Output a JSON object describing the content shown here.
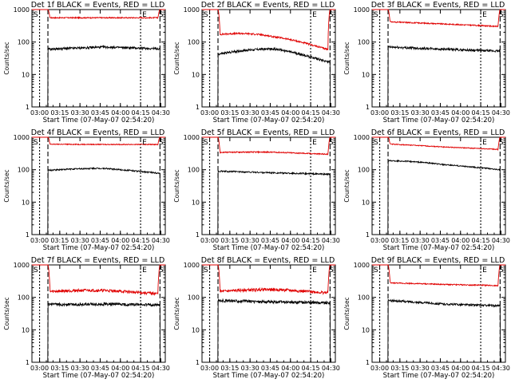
{
  "panels": [
    {
      "title": "Det 1f  BLACK = Events, RED = LLD",
      "xlabel": "Start Time (07-May-07 02:54:20)",
      "ylabel": "Counts/sec",
      "red": {
        "edgeL": 1000,
        "edgeR": 1000,
        "start": 560,
        "mid": 560,
        "end": 560,
        "noise": 0.04,
        "bump": 0
      },
      "black": {
        "edgeL": 3,
        "edgeR": 3,
        "start": 60,
        "mid": 70,
        "end": 62,
        "noise": 0.08,
        "bump": 0
      }
    },
    {
      "title": "Det 2f  BLACK = Events, RED = LLD",
      "xlabel": "Start Time (07-May-07 02:54:20)",
      "ylabel": "Counts/sec",
      "red": {
        "edgeL": 1000,
        "edgeR": 1000,
        "start": 170,
        "mid": 110,
        "end": 80,
        "noise": 0.06,
        "bump": 0.35
      },
      "black": {
        "edgeL": 3,
        "edgeR": 3,
        "start": 42,
        "mid": 50,
        "end": 30,
        "noise": 0.08,
        "bump": 0.25
      }
    },
    {
      "title": "Det 3f  BLACK = Events, RED = LLD",
      "xlabel": "Start Time (07-May-07 02:54:20)",
      "ylabel": "Counts/sec",
      "red": {
        "edgeL": 1000,
        "edgeR": 1000,
        "start": 420,
        "mid": 360,
        "end": 300,
        "noise": 0.04,
        "bump": 0
      },
      "black": {
        "edgeL": 3,
        "edgeR": 3,
        "start": 70,
        "mid": 60,
        "end": 52,
        "noise": 0.08,
        "bump": 0
      }
    },
    {
      "title": "Det 4f  BLACK = Events, RED = LLD",
      "xlabel": "Start Time (07-May-07 02:54:20)",
      "ylabel": "Counts/sec",
      "red": {
        "edgeL": 1000,
        "edgeR": 1000,
        "start": 610,
        "mid": 600,
        "end": 600,
        "noise": 0.03,
        "bump": 0
      },
      "black": {
        "edgeL": 3,
        "edgeR": 3,
        "start": 95,
        "mid": 100,
        "end": 85,
        "noise": 0.05,
        "bump": 0.1
      }
    },
    {
      "title": "Det 5f  BLACK = Events, RED = LLD",
      "xlabel": "Start Time (07-May-07 02:54:20)",
      "ylabel": "Counts/sec",
      "red": {
        "edgeL": 1000,
        "edgeR": 1000,
        "start": 340,
        "mid": 330,
        "end": 310,
        "noise": 0.04,
        "bump": 0.05
      },
      "black": {
        "edgeL": 3,
        "edgeR": 3,
        "start": 90,
        "mid": 80,
        "end": 72,
        "noise": 0.05,
        "bump": 0
      }
    },
    {
      "title": "Det 6f  BLACK = Events, RED = LLD",
      "xlabel": "Start Time (07-May-07 02:54:20)",
      "ylabel": "Counts/sec",
      "red": {
        "edgeL": 1000,
        "edgeR": 1000,
        "start": 620,
        "mid": 500,
        "end": 420,
        "noise": 0.03,
        "bump": 0
      },
      "black": {
        "edgeL": 3,
        "edgeR": 3,
        "start": 190,
        "mid": 130,
        "end": 110,
        "noise": 0.04,
        "bump": 0.1
      }
    },
    {
      "title": "Det 7f  BLACK = Events, RED = LLD",
      "xlabel": "Start Time (07-May-07 02:54:20)",
      "ylabel": "Counts/sec",
      "red": {
        "edgeL": 1000,
        "edgeR": 1000,
        "start": 150,
        "mid": 150,
        "end": 140,
        "noise": 0.1,
        "bump": 0.1
      },
      "black": {
        "edgeL": 3,
        "edgeR": 3,
        "start": 60,
        "mid": 62,
        "end": 58,
        "noise": 0.1,
        "bump": 0
      }
    },
    {
      "title": "Det 8f  BLACK = Events, RED = LLD",
      "xlabel": "Start Time (07-May-07 02:54:20)",
      "ylabel": "Counts/sec",
      "red": {
        "edgeL": 1000,
        "edgeR": 1000,
        "start": 150,
        "mid": 160,
        "end": 150,
        "noise": 0.1,
        "bump": 0.1
      },
      "black": {
        "edgeL": 3,
        "edgeR": 3,
        "start": 80,
        "mid": 72,
        "end": 68,
        "noise": 0.1,
        "bump": 0
      }
    },
    {
      "title": "Det 9f  BLACK = Events, RED = LLD",
      "xlabel": "Start Time (07-May-07 02:54:20)",
      "ylabel": "Counts/sec",
      "red": {
        "edgeL": 1000,
        "edgeR": 1000,
        "start": 280,
        "mid": 250,
        "end": 230,
        "noise": 0.04,
        "bump": 0
      },
      "black": {
        "edgeL": 3,
        "edgeR": 3,
        "start": 80,
        "mid": 62,
        "end": 55,
        "noise": 0.07,
        "bump": 0
      }
    }
  ],
  "chart_data": {
    "type": "line",
    "layout": "3x3 grid of detector panels",
    "x_ticks": [
      "03:00",
      "03:15",
      "03:30",
      "03:45",
      "04:00",
      "04:15",
      "04:30"
    ],
    "y_ticks": [
      "1",
      "10",
      "100",
      "1000"
    ],
    "y_scale": "log",
    "ylim": [
      1,
      1000
    ],
    "series_note": "BLACK = Events, RED = LLD",
    "markers": {
      "S": "03:00",
      "E": "04:15",
      "S2": "04:30"
    },
    "colors": {
      "events": "#000000",
      "lld": "#e00000",
      "axes": "#000000"
    }
  }
}
